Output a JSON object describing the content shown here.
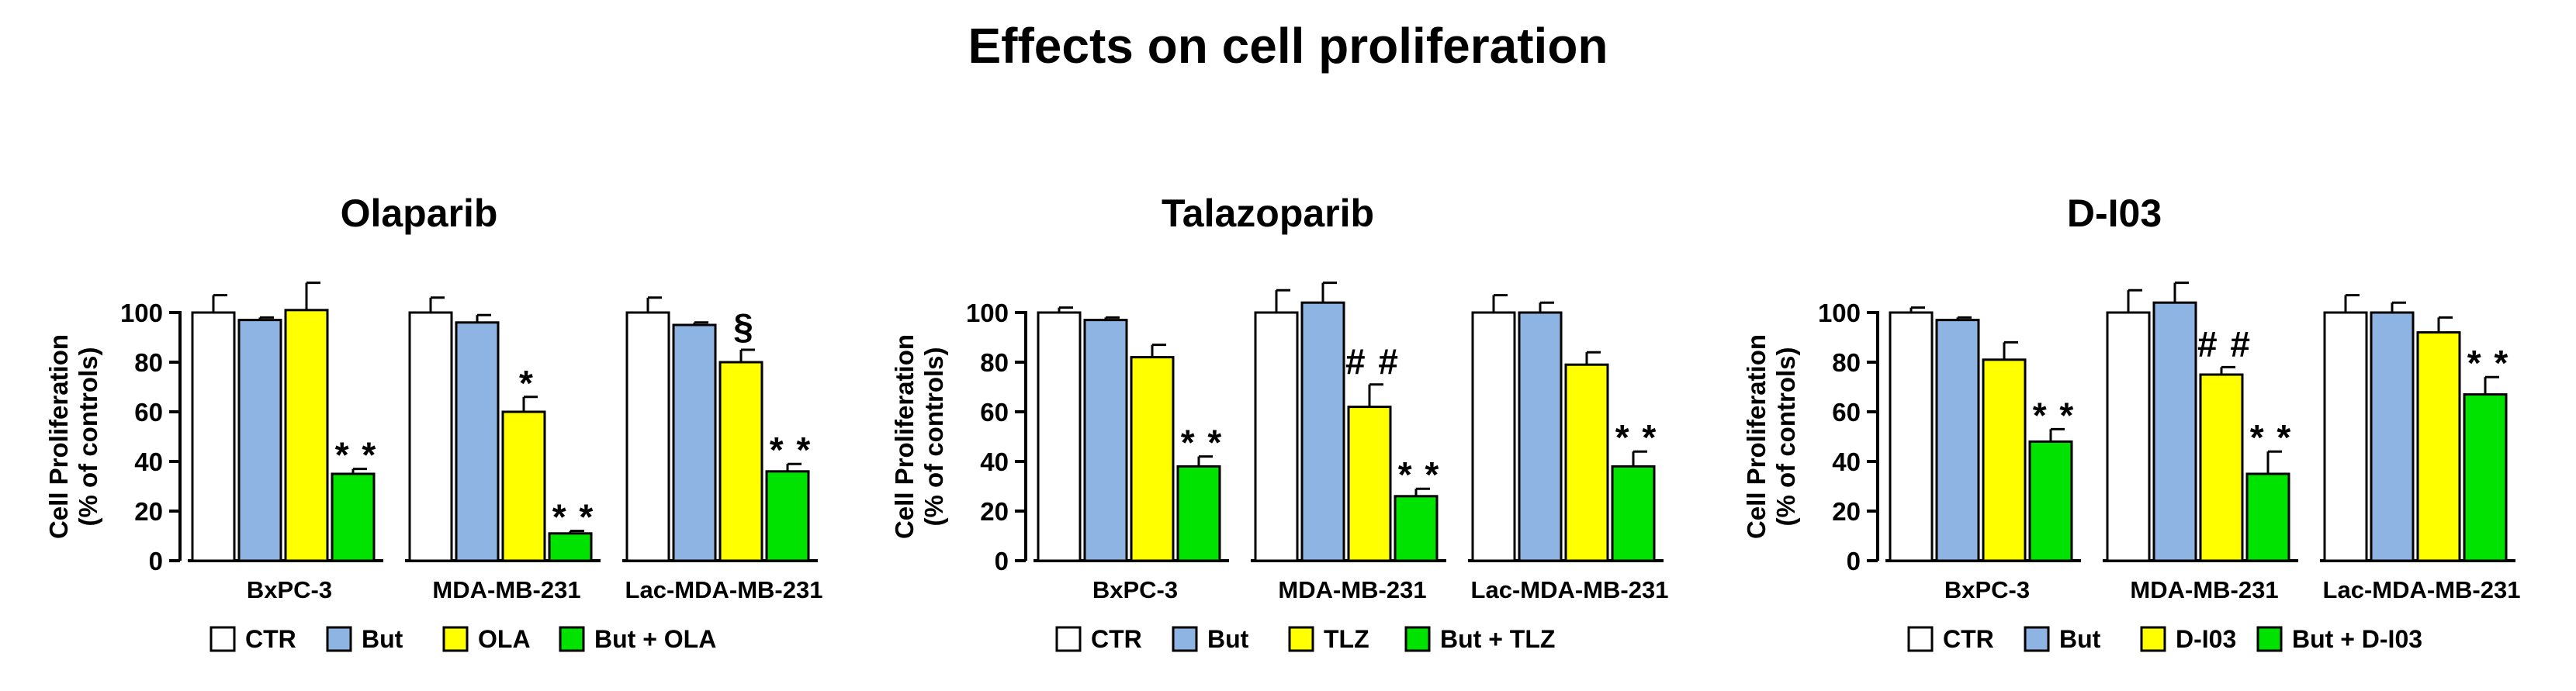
{
  "main_title": "Effects on cell proliferation",
  "colors": {
    "CTR": "#ffffff",
    "But": "#8db4e2",
    "drug": "#ffff00",
    "combo": "#00e200",
    "stroke": "#000000"
  },
  "chart_data": [
    {
      "type": "bar",
      "title": "Olaparib",
      "ylabel": [
        "Cell Proliferation",
        "(% of controls)"
      ],
      "xlabel": "",
      "ylim": [
        0,
        100
      ],
      "yticks": [
        "0",
        "20",
        "40",
        "60",
        "80",
        "100"
      ],
      "categories": [
        "BxPC-3",
        "MDA-MB-231",
        "Lac-MDA-MB-231"
      ],
      "series": [
        {
          "name": "CTR",
          "color_key": "CTR",
          "values": [
            100,
            100,
            100
          ],
          "errors": [
            7,
            6,
            6
          ]
        },
        {
          "name": "But",
          "color_key": "But",
          "values": [
            97,
            96,
            95
          ],
          "errors": [
            1,
            3,
            1
          ]
        },
        {
          "name": "OLA",
          "color_key": "drug",
          "values": [
            101,
            60,
            80
          ],
          "errors": [
            11,
            6,
            5
          ]
        },
        {
          "name": "But + OLA",
          "color_key": "combo",
          "values": [
            35,
            11,
            36
          ],
          "errors": [
            2,
            1,
            3
          ]
        }
      ],
      "annotations": [
        {
          "category": 0,
          "series": 3,
          "text": "**"
        },
        {
          "category": 1,
          "series": 2,
          "text": "*"
        },
        {
          "category": 1,
          "series": 3,
          "text": "**"
        },
        {
          "category": 2,
          "series": 2,
          "text": "§"
        },
        {
          "category": 2,
          "series": 3,
          "text": "**"
        }
      ],
      "legend": [
        "CTR",
        "But",
        "OLA",
        "But + OLA"
      ]
    },
    {
      "type": "bar",
      "title": "Talazoparib",
      "ylabel": [
        "Cell Proliferation",
        "(% of controls)"
      ],
      "xlabel": "",
      "ylim": [
        0,
        100
      ],
      "yticks": [
        "0",
        "20",
        "40",
        "60",
        "80",
        "100"
      ],
      "categories": [
        "BxPC-3",
        "MDA-MB-231",
        "Lac-MDA-MB-231"
      ],
      "series": [
        {
          "name": "CTR",
          "color_key": "CTR",
          "values": [
            100,
            100,
            100
          ],
          "errors": [
            2,
            9,
            7
          ]
        },
        {
          "name": "But",
          "color_key": "But",
          "values": [
            97,
            104,
            100
          ],
          "errors": [
            1,
            8,
            4
          ]
        },
        {
          "name": "TLZ",
          "color_key": "drug",
          "values": [
            82,
            62,
            79
          ],
          "errors": [
            5,
            9,
            5
          ]
        },
        {
          "name": "But + TLZ",
          "color_key": "combo",
          "values": [
            38,
            26,
            38
          ],
          "errors": [
            4,
            3,
            6
          ]
        }
      ],
      "annotations": [
        {
          "category": 0,
          "series": 3,
          "text": "**"
        },
        {
          "category": 1,
          "series": 2,
          "text": "##"
        },
        {
          "category": 1,
          "series": 3,
          "text": "**"
        },
        {
          "category": 2,
          "series": 3,
          "text": "**"
        }
      ],
      "legend": [
        "CTR",
        "But",
        "TLZ",
        "But + TLZ"
      ]
    },
    {
      "type": "bar",
      "title": "D-I03",
      "ylabel": [
        "Cell Proliferation",
        "(% of controls)"
      ],
      "xlabel": "",
      "ylim": [
        0,
        100
      ],
      "yticks": [
        "0",
        "20",
        "40",
        "60",
        "80",
        "100"
      ],
      "categories": [
        "BxPC-3",
        "MDA-MB-231",
        "Lac-MDA-MB-231"
      ],
      "series": [
        {
          "name": "CTR",
          "color_key": "CTR",
          "values": [
            100,
            100,
            100
          ],
          "errors": [
            2,
            9,
            7
          ]
        },
        {
          "name": "But",
          "color_key": "But",
          "values": [
            97,
            104,
            100
          ],
          "errors": [
            1,
            8,
            4
          ]
        },
        {
          "name": "D-I03",
          "color_key": "drug",
          "values": [
            81,
            75,
            92
          ],
          "errors": [
            7,
            3,
            6
          ]
        },
        {
          "name": "But + D-I03",
          "color_key": "combo",
          "values": [
            48,
            35,
            67
          ],
          "errors": [
            5,
            9,
            7
          ]
        }
      ],
      "annotations": [
        {
          "category": 0,
          "series": 3,
          "text": "**"
        },
        {
          "category": 1,
          "series": 2,
          "text": "##"
        },
        {
          "category": 1,
          "series": 3,
          "text": "**"
        },
        {
          "category": 2,
          "series": 3,
          "text": "**"
        }
      ],
      "legend": [
        "CTR",
        "But",
        "D-I03",
        "But + D-I03"
      ]
    }
  ]
}
